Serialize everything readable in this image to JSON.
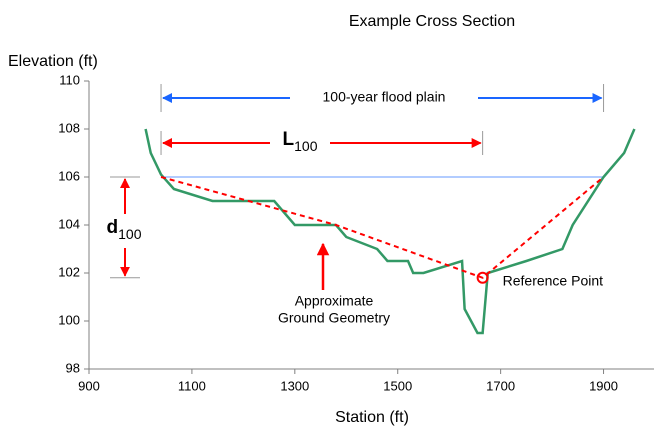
{
  "chart_data": {
    "type": "line",
    "title": "Example Cross Section",
    "y_label": "Elevation (ft)",
    "x_label": "Station (ft)",
    "xlim": [
      900,
      2000
    ],
    "xticks": [
      900,
      1100,
      1300,
      1500,
      1700,
      1900
    ],
    "ylim": [
      98,
      110
    ],
    "yticks": [
      98,
      100,
      102,
      104,
      106,
      108,
      110
    ],
    "series": [
      {
        "name": "Ground",
        "color": "#339966",
        "dashed": false,
        "x": [
          1010,
          1020,
          1040,
          1065,
          1140,
          1260,
          1300,
          1380,
          1400,
          1460,
          1480,
          1520,
          1530,
          1550,
          1625,
          1630,
          1655,
          1665,
          1675,
          1750,
          1820,
          1840,
          1900,
          1940,
          1960
        ],
        "values": [
          108,
          107,
          106.1,
          105.5,
          105,
          105,
          104,
          104,
          103.5,
          103,
          102.5,
          102.5,
          102,
          102,
          102.5,
          100.5,
          99.5,
          99.5,
          102,
          102.5,
          103,
          104,
          106,
          107,
          108
        ]
      },
      {
        "name": "Approximate Ground Geometry",
        "color": "#ff0000",
        "dashed": true,
        "x": [
          1040,
          1380,
          1665,
          1900
        ],
        "values": [
          106,
          104,
          101.8,
          106
        ]
      }
    ],
    "flood_elevation": 106,
    "flood_plain": [
      1040,
      1900
    ],
    "flood_plain_label": "100-year flood plain",
    "length_label": {
      "main": "L",
      "sub": "100"
    },
    "depth_label": {
      "main": "d",
      "sub": "100"
    },
    "geometry_label": [
      "Approximate",
      "Ground Geometry"
    ],
    "reference_point": {
      "x": 1665,
      "y": 101.8,
      "label": "Reference Point"
    }
  }
}
